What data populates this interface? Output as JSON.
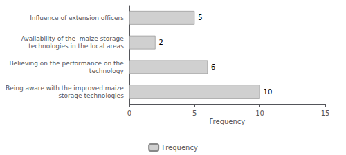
{
  "chart_data": {
    "type": "bar",
    "orientation": "horizontal",
    "categories": [
      "Being aware with the improved maize\nstorage technologies",
      "Believing on the performance on the\ntechnology",
      "Availability of the  maize storage\ntechnologies in the local areas",
      "Influence of extension officers"
    ],
    "values": [
      10,
      6,
      2,
      5
    ],
    "color": "#d0d0d0",
    "xlabel": "Frequency",
    "xlim": [
      0,
      15
    ],
    "xticks": [
      0,
      5,
      10,
      15
    ],
    "data_labels": true,
    "series_name": "Frequency",
    "legend": "bottom",
    "grid": false
  }
}
